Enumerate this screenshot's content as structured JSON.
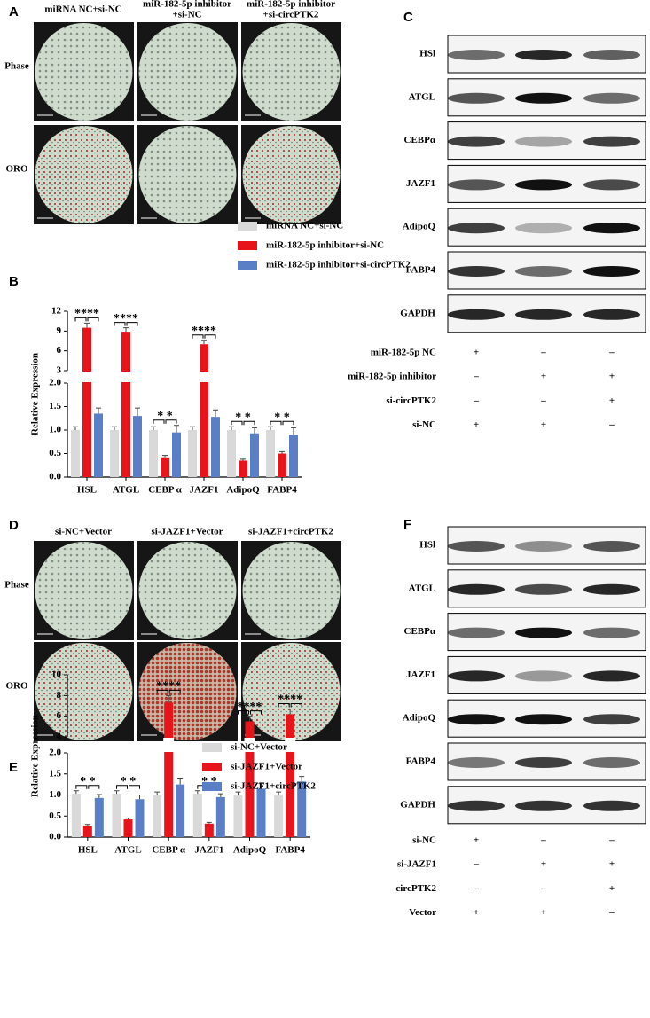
{
  "panel_labels": [
    "A",
    "B",
    "C",
    "D",
    "E",
    "F"
  ],
  "micrographs": [
    {
      "columns": [
        [
          "miRNA NC+si-NC"
        ],
        [
          "miR-182-5p inhibitor",
          "+si-NC"
        ],
        [
          "miR-182-5p inhibitor",
          "+si-circPTK2"
        ]
      ],
      "rows": [
        "Phase",
        "ORO"
      ]
    },
    {
      "columns": [
        [
          "si-NC+Vector"
        ],
        [
          "si-JAZF1+Vector"
        ],
        [
          "si-JAZF1+circPTK2"
        ]
      ],
      "rows": [
        "Phase",
        "ORO"
      ]
    }
  ],
  "blots": [
    {
      "proteins": [
        "HSl",
        "ATGL",
        "CEBPα",
        "JAZF1",
        "AdipoQ",
        "FABP4",
        "GAPDH"
      ],
      "conditions": [
        {
          "name": "miR-182-5p NC",
          "signs": [
            "+",
            "–",
            "–"
          ]
        },
        {
          "name": "miR-182-5p inhibitor",
          "signs": [
            "–",
            "+",
            "+"
          ]
        },
        {
          "name": "si-circPTK2",
          "signs": [
            "–",
            "–",
            "+"
          ]
        },
        {
          "name": "si-NC",
          "signs": [
            "+",
            "+",
            "–"
          ]
        }
      ]
    },
    {
      "proteins": [
        "HSl",
        "ATGL",
        "CEBPα",
        "JAZF1",
        "AdipoQ",
        "FABP4",
        "GAPDH"
      ],
      "conditions": [
        {
          "name": "si-NC",
          "signs": [
            "+",
            "–",
            "–"
          ]
        },
        {
          "name": "si-JAZF1",
          "signs": [
            "–",
            "+",
            "+"
          ]
        },
        {
          "name": "circPTK2",
          "signs": [
            "–",
            "–",
            "+"
          ]
        },
        {
          "name": "Vector",
          "signs": [
            "+",
            "+",
            "–"
          ]
        }
      ]
    }
  ],
  "chart_data": [
    {
      "type": "bar",
      "ylabel": "Relative Expression",
      "categories": [
        "HSL",
        "ATGL",
        "CEBP α",
        "JAZF1",
        "AdipoQ",
        "FABP4"
      ],
      "series": [
        {
          "name": "miRNA NC+si-NC",
          "color": "#d9d9d9",
          "values": [
            1.0,
            1.0,
            1.0,
            1.0,
            1.0,
            1.0
          ],
          "errors": [
            0.07,
            0.07,
            0.07,
            0.07,
            0.07,
            0.07
          ]
        },
        {
          "name": "miR-182-5p inhibitor+si-NC",
          "color": "#e8141b",
          "values": [
            9.5,
            8.9,
            0.42,
            7.0,
            0.35,
            0.5
          ],
          "errors": [
            0.7,
            0.6,
            0.04,
            0.6,
            0.03,
            0.04
          ]
        },
        {
          "name": "miR-182-5p inhibitor+si-circPTK2",
          "color": "#5b7fc7",
          "values": [
            1.35,
            1.3,
            0.95,
            1.28,
            0.93,
            0.9
          ],
          "errors": [
            0.12,
            0.17,
            0.15,
            0.15,
            0.12,
            0.15
          ]
        }
      ],
      "significance": [
        "****",
        "****",
        "* *",
        "****",
        "* *",
        "* *"
      ],
      "ylim": [
        0,
        12
      ],
      "y_break": [
        2,
        3
      ],
      "yticks": [
        {
          "value": 0,
          "label": "0.0"
        },
        {
          "value": 0.5,
          "label": "0.5"
        },
        {
          "value": 1,
          "label": "1.0"
        },
        {
          "value": 1.5,
          "label": "1.5"
        },
        {
          "value": 2,
          "label": "2.0"
        },
        3,
        6,
        9,
        12
      ]
    },
    {
      "type": "bar",
      "ylabel": "Relative Expression",
      "categories": [
        "HSL",
        "ATGL",
        "CEBP α",
        "JAZF1",
        "AdipoQ",
        "FABP4"
      ],
      "series": [
        {
          "name": "si-NC+Vector",
          "color": "#d9d9d9",
          "values": [
            1.03,
            1.03,
            1.0,
            1.03,
            1.0,
            1.0
          ],
          "errors": [
            0.07,
            0.07,
            0.07,
            0.07,
            0.07,
            0.07
          ]
        },
        {
          "name": "si-JAZF1+Vector",
          "color": "#e8141b",
          "values": [
            0.27,
            0.42,
            7.3,
            0.32,
            5.5,
            6.2
          ],
          "errors": [
            0.03,
            0.03,
            0.7,
            0.03,
            0.5,
            0.5
          ]
        },
        {
          "name": "si-JAZF1+circPTK2",
          "color": "#5b7fc7",
          "values": [
            0.93,
            0.9,
            1.25,
            0.95,
            1.15,
            1.32
          ],
          "errors": [
            0.08,
            0.1,
            0.15,
            0.08,
            0.12,
            0.12
          ]
        }
      ],
      "significance": [
        "* *",
        "* *",
        "****",
        "* *",
        "****",
        "****"
      ],
      "ylim": [
        0,
        10
      ],
      "y_break": [
        2,
        4
      ],
      "yticks": [
        {
          "value": 0,
          "label": "0.0"
        },
        {
          "value": 0.5,
          "label": "0.5"
        },
        {
          "value": 1,
          "label": "1.0"
        },
        {
          "value": 1.5,
          "label": "1.5"
        },
        {
          "value": 2,
          "label": "2.0"
        },
        4,
        6,
        8,
        10
      ]
    }
  ]
}
